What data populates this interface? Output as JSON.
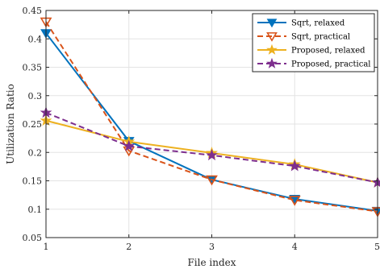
{
  "chart_data": {
    "type": "line",
    "xlabel": "File index",
    "ylabel": "Utilization Ratio",
    "x": [
      1,
      2,
      3,
      4,
      5
    ],
    "xlim": [
      1,
      5
    ],
    "ylim": [
      0.05,
      0.45
    ],
    "xticks": [
      "1",
      "2",
      "3",
      "4",
      "5"
    ],
    "yticks": [
      "0.05",
      "0.1",
      "0.15",
      "0.2",
      "0.25",
      "0.3",
      "0.35",
      "0.4",
      "0.45"
    ],
    "grid": true,
    "legend_position": "top-right",
    "series": [
      {
        "name": "Sqrt, relaxed",
        "values": [
          0.41,
          0.22,
          0.152,
          0.118,
          0.097
        ],
        "color": "#0072BD",
        "dash": "solid",
        "marker": "triangle-down-filled"
      },
      {
        "name": "Sqrt, practical",
        "values": [
          0.43,
          0.203,
          0.152,
          0.116,
          0.096
        ],
        "color": "#D95319",
        "dash": "dashed",
        "marker": "triangle-down-open"
      },
      {
        "name": "Proposed, relaxed",
        "values": [
          0.256,
          0.219,
          0.199,
          0.179,
          0.147
        ],
        "color": "#EDB120",
        "dash": "solid",
        "marker": "star"
      },
      {
        "name": "Proposed, practical",
        "values": [
          0.27,
          0.211,
          0.195,
          0.176,
          0.147
        ],
        "color": "#7E2F8E",
        "dash": "dashed",
        "marker": "star"
      }
    ]
  }
}
